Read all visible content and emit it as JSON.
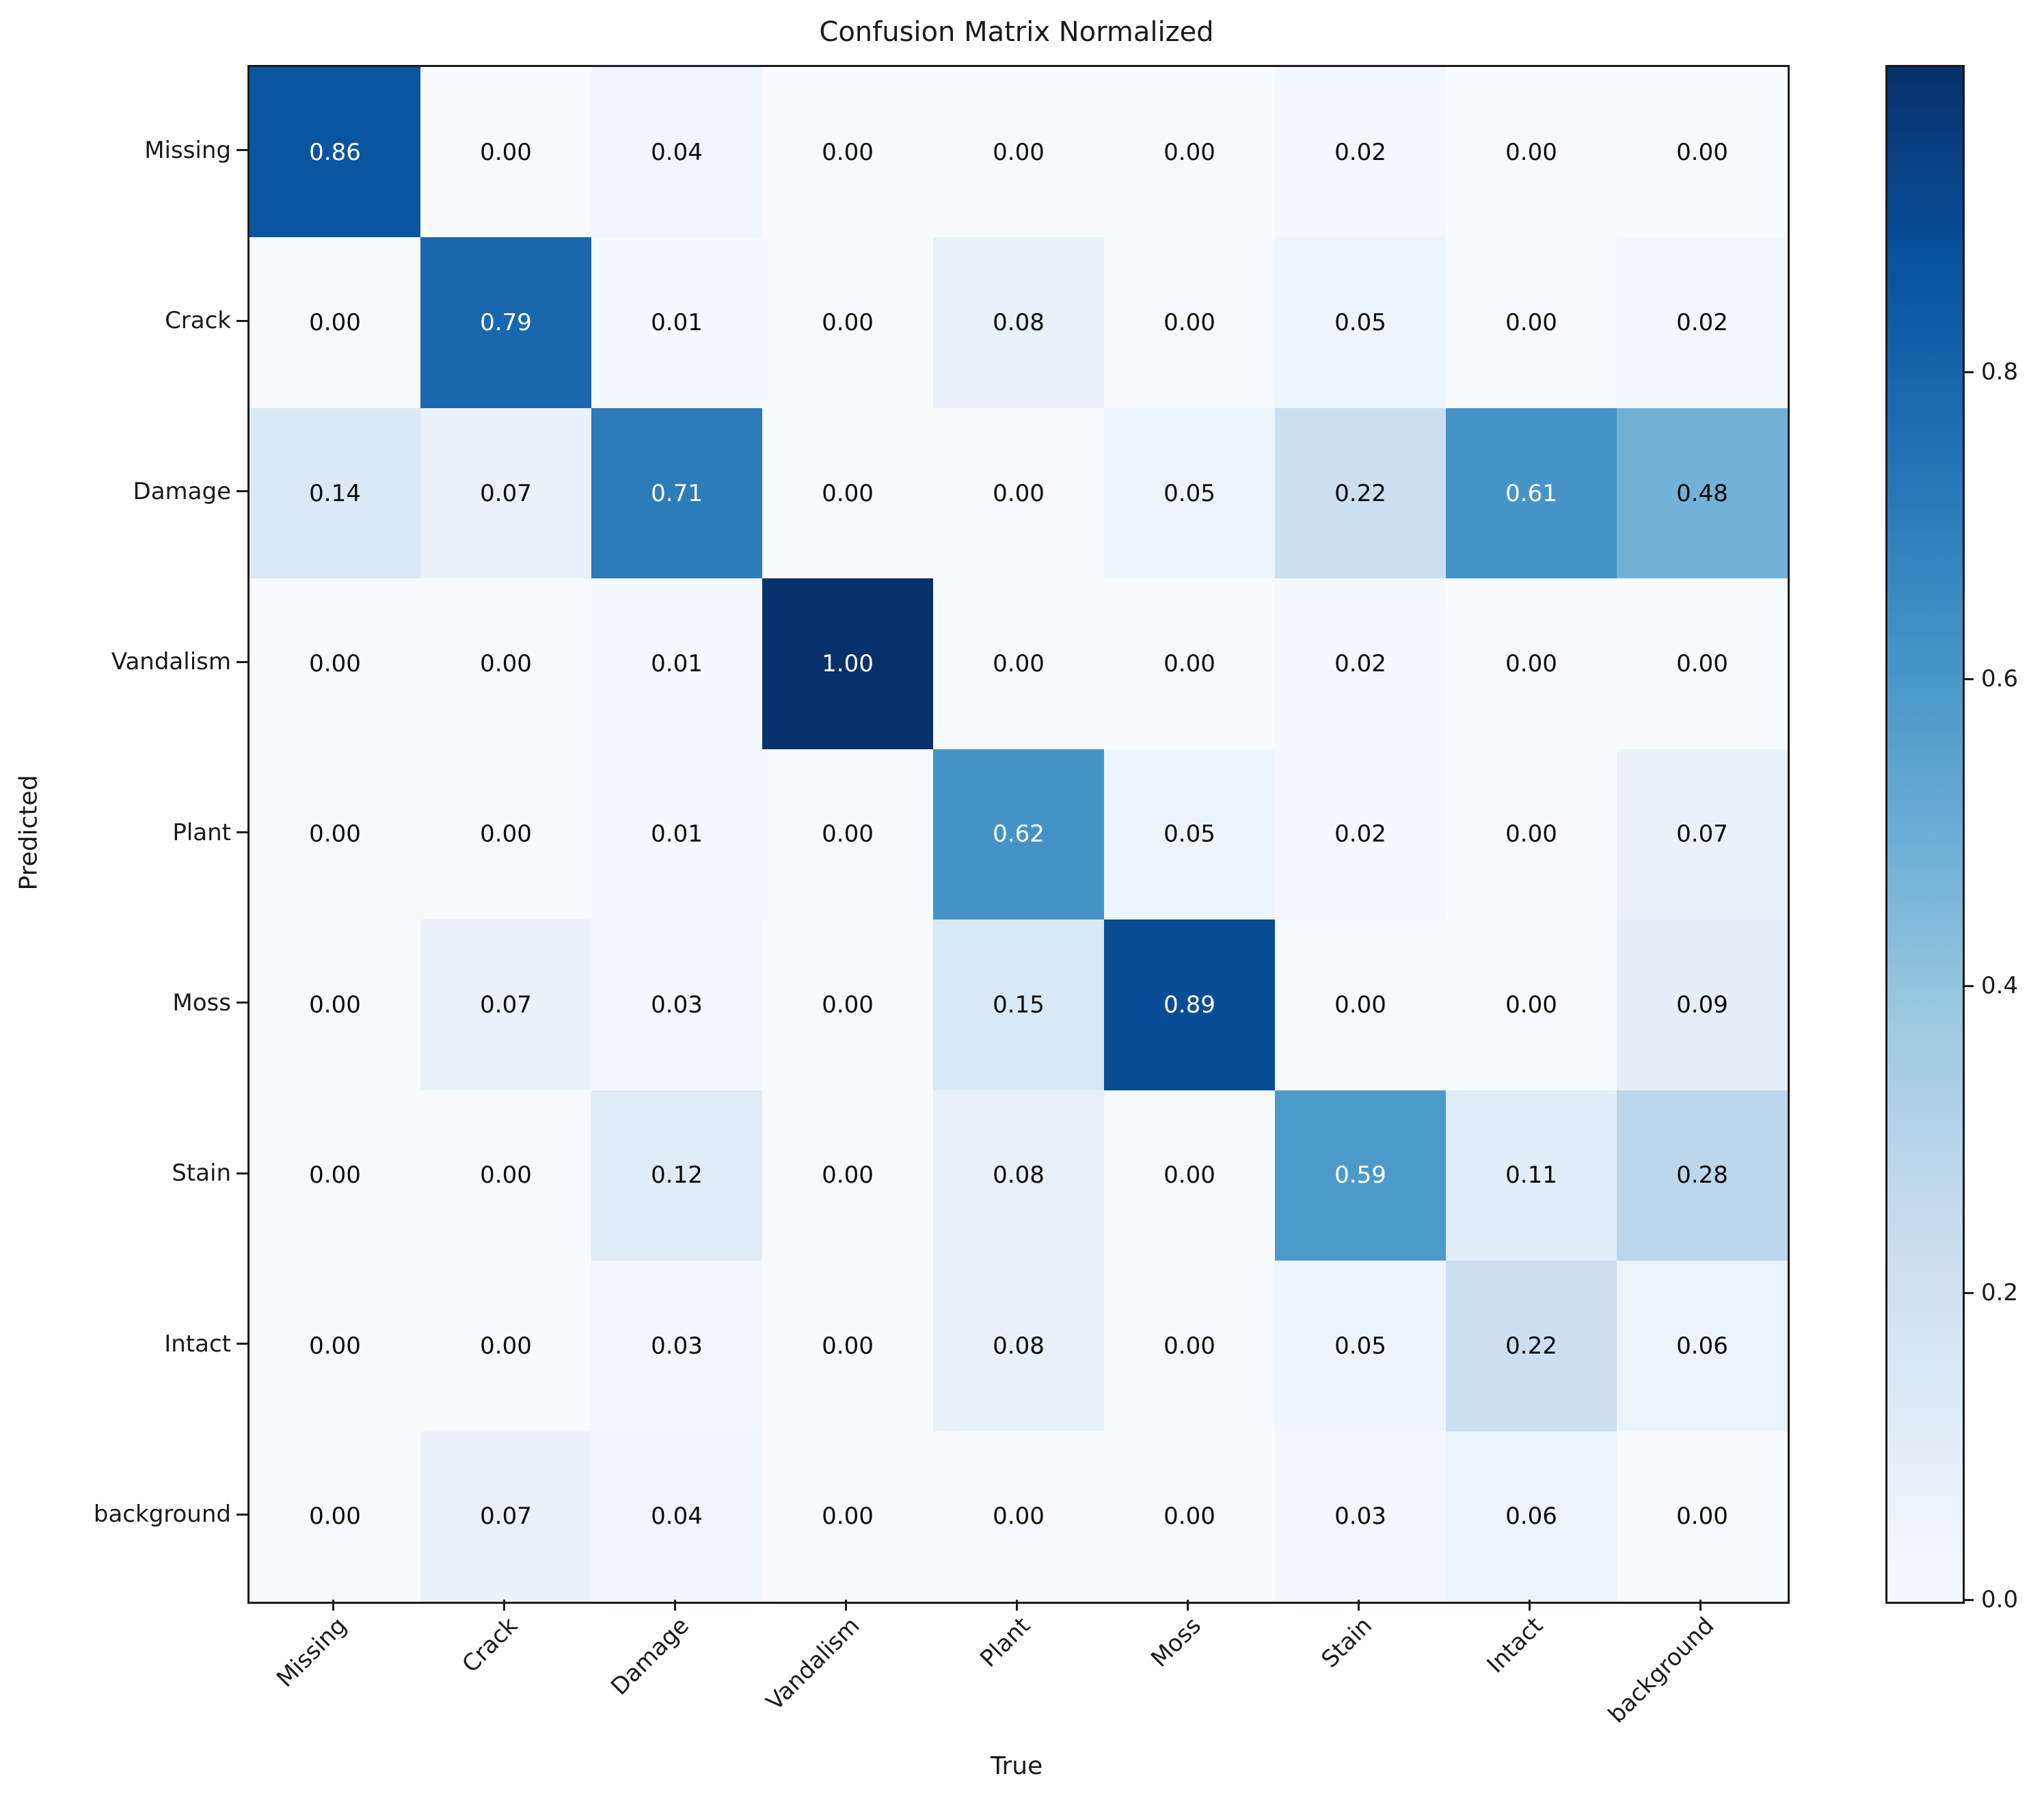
{
  "title": "Confusion Matrix Normalized",
  "chart_data": {
    "type": "heatmap",
    "title": "Confusion Matrix Normalized",
    "xlabel": "True",
    "ylabel": "Predicted",
    "x_categories": [
      "Missing",
      "Crack",
      "Damage",
      "Vandalism",
      "Plant",
      "Moss",
      "Stain",
      "Intact",
      "background"
    ],
    "y_categories": [
      "Missing",
      "Crack",
      "Damage",
      "Vandalism",
      "Plant",
      "Moss",
      "Stain",
      "Intact",
      "background"
    ],
    "values": [
      [
        0.86,
        0.0,
        0.04,
        0.0,
        0.0,
        0.0,
        0.02,
        0.0,
        0.0
      ],
      [
        0.0,
        0.79,
        0.01,
        0.0,
        0.08,
        0.0,
        0.05,
        0.0,
        0.02
      ],
      [
        0.14,
        0.07,
        0.71,
        0.0,
        0.0,
        0.05,
        0.22,
        0.61,
        0.48
      ],
      [
        0.0,
        0.0,
        0.01,
        1.0,
        0.0,
        0.0,
        0.02,
        0.0,
        0.0
      ],
      [
        0.0,
        0.0,
        0.01,
        0.0,
        0.62,
        0.05,
        0.02,
        0.0,
        0.07
      ],
      [
        0.0,
        0.07,
        0.03,
        0.0,
        0.15,
        0.89,
        0.0,
        0.0,
        0.09
      ],
      [
        0.0,
        0.0,
        0.12,
        0.0,
        0.08,
        0.0,
        0.59,
        0.11,
        0.28
      ],
      [
        0.0,
        0.0,
        0.03,
        0.0,
        0.08,
        0.0,
        0.05,
        0.22,
        0.06
      ],
      [
        0.0,
        0.07,
        0.04,
        0.0,
        0.0,
        0.0,
        0.03,
        0.06,
        0.0
      ]
    ],
    "value_decimals": 2,
    "vmin": 0.0,
    "vmax": 1.0,
    "colormap": {
      "name": "Blues",
      "stops": [
        "#f7fbff",
        "#deebf7",
        "#c6dbef",
        "#9ecae1",
        "#6baed6",
        "#4292c6",
        "#2171b5",
        "#08519c",
        "#08306b"
      ]
    },
    "cell_text_colors": {
      "light": "#ffffff",
      "dark": "#0a0a0a"
    },
    "text_color_threshold": 0.5,
    "colorbar_ticks": [
      0.8,
      0.6,
      0.4,
      0.2,
      0.0
    ],
    "colorbar_position": "right",
    "grid": false
  }
}
